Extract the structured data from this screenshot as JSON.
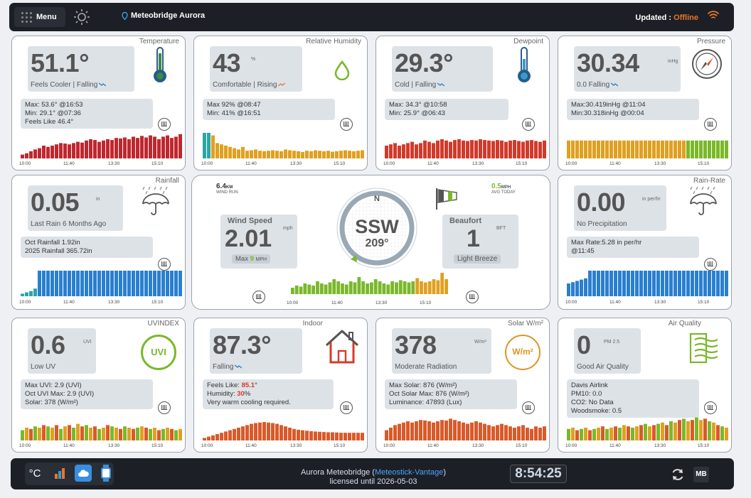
{
  "header": {
    "menu_label": "Menu",
    "station_name": "Meteobridge Aurora",
    "updated_label": "Updated : ",
    "updated_status": "Offline"
  },
  "axis_times": [
    "10:00",
    "11:40",
    "13:30",
    "15:10"
  ],
  "temperature": {
    "title": "Temperature",
    "value": "51.1°",
    "subtitle": "Feels Cooler | Falling",
    "stats": [
      "Max: 53.6° @16:53",
      "Min: 29.1° @07:36",
      "Feels Like 46.4°"
    ],
    "color": "#c0272d"
  },
  "humidity": {
    "title": "Relative Humidity",
    "value": "43",
    "unit": "%",
    "subtitle": "Comfortable | Rising",
    "stats": [
      "Max 92% @08:47",
      "Min: 41% @16:51"
    ],
    "color": "#e0a020"
  },
  "dewpoint": {
    "title": "Dewpoint",
    "value": "29.3°",
    "subtitle": "Cold | Falling",
    "stats": [
      "Max: 34.3° @10:58",
      "Min: 25.9° @06:43"
    ],
    "color": "#d23a2a"
  },
  "pressure": {
    "title": "Pressure",
    "value": "30.34",
    "unit": "inHg",
    "subtitle": "0.0 Falling",
    "stats": [
      "Max:30.419inHg @11:04",
      "Min:30.318inHg @00:04"
    ],
    "color": "#e0a020"
  },
  "rainfall": {
    "title": "Rainfall",
    "value": "0.05",
    "unit": "in",
    "subtitle": "Last Rain 6 Months Ago",
    "stats": [
      "Oct Rainfall 1.92in",
      "2025 Rainfall 365.72in"
    ],
    "color": "#2a7fcf"
  },
  "wind": {
    "wind_run_value": "6.4",
    "wind_run_unit": "KM",
    "wind_run_label": "WIND RUN",
    "avg_value": "0.5",
    "avg_unit": "MPH",
    "avg_label": "AVG TODAY",
    "speed_title": "Wind Speed",
    "speed_value": "2.01",
    "speed_unit": "mph",
    "max_label": "Max",
    "max_value": "9",
    "max_unit": "MPH",
    "compass_north": "N",
    "direction": "SSW",
    "degrees": "209°",
    "beaufort_title": "Beaufort",
    "beaufort_value": "1",
    "beaufort_unit": "BFT",
    "beaufort_desc": "Light Breeze"
  },
  "rainrate": {
    "title": "Rain-Rate",
    "value": "0.00",
    "unit": "in per/hr",
    "subtitle": "No Precipitation",
    "stats": [
      "Max Rate:5.28 in per/hr",
      "@11:45"
    ],
    "color": "#2a7fcf"
  },
  "uvindex": {
    "title": "UVINDEX",
    "value": "0.6",
    "unit": "UVI",
    "badge": "UVI",
    "subtitle": "Low UV",
    "stats": [
      "Max UVI: 2.9 (UVI)",
      "Oct UVI Max: 2.9 (UVI)",
      "Solar: 378 (W/m²)"
    ]
  },
  "indoor": {
    "title": "Indoor",
    "value": "87.3°",
    "subtitle": "Falling",
    "stats_feels_label": "Feels Like: ",
    "stats_feels_value": "85.1",
    "stats_feels_unit": "°",
    "stats_hum_label": "Humidity: ",
    "stats_hum_value": "30",
    "stats_hum_unit": "%",
    "stats_note": "Very warm cooling required."
  },
  "solar": {
    "title": "Solar W/m²",
    "value": "378",
    "unit": "W/m²",
    "badge": "W/m²",
    "subtitle": "Moderate Radiation",
    "stats": [
      "Max Solar: 876 (W/m²)",
      "Oct Solar Max: 876 (W/m²)",
      "Luminance: 47893 (Lux)"
    ]
  },
  "airquality": {
    "title": "Air Quality",
    "value": "0",
    "unit": "PM 2.5",
    "subtitle": "Good Air Quality",
    "stats": [
      "Davis Airlink",
      "PM10: 0.0",
      "CO2: No Data",
      "Woodsmoke: 0.5"
    ]
  },
  "footer": {
    "celsius_label": "°C",
    "license_prefix": "Aurora Meteobridge (",
    "license_link": "Meteostick-Vantage",
    "license_suffix": ")",
    "license_line2": "licensed until 2026-05-03",
    "clock": "8:54:25",
    "mb_label": "MB"
  },
  "series": {
    "temperature": [
      0.15,
      0.2,
      0.28,
      0.35,
      0.4,
      0.5,
      0.45,
      0.5,
      0.55,
      0.6,
      0.58,
      0.55,
      0.6,
      0.65,
      0.62,
      0.7,
      0.75,
      0.72,
      0.65,
      0.7,
      0.75,
      0.72,
      0.8,
      0.78,
      0.82,
      0.75,
      0.85,
      0.8,
      0.88,
      0.82,
      0.9,
      0.85,
      0.75,
      0.85,
      0.9,
      0.8,
      0.85,
      0.95
    ],
    "humidity": [
      1,
      1,
      0.9,
      0.6,
      0.55,
      0.5,
      0.45,
      0.4,
      0.35,
      0.45,
      0.3,
      0.32,
      0.35,
      0.3,
      0.28,
      0.3,
      0.32,
      0.3,
      0.28,
      0.35,
      0.32,
      0.3,
      0.28,
      0.25,
      0.3,
      0.28,
      0.32,
      0.3,
      0.28,
      0.3,
      0.26,
      0.28,
      0.3,
      0.32,
      0.3,
      0.28,
      0.3,
      0.32
    ],
    "dewpoint": [
      0.5,
      0.55,
      0.6,
      0.5,
      0.55,
      0.6,
      0.65,
      0.55,
      0.6,
      0.7,
      0.65,
      0.6,
      0.7,
      0.75,
      0.7,
      0.65,
      0.72,
      0.75,
      0.7,
      0.68,
      0.72,
      0.7,
      0.75,
      0.72,
      0.7,
      0.68,
      0.72,
      0.7,
      0.65,
      0.7,
      0.72,
      0.68,
      0.65,
      0.7,
      0.72,
      0.68,
      0.65,
      0.7
    ],
    "pressure": [
      0.7,
      0.7,
      0.7,
      0.7,
      0.7,
      0.7,
      0.7,
      0.7,
      0.7,
      0.7,
      0.7,
      0.7,
      0.7,
      0.7,
      0.7,
      0.7,
      0.7,
      0.7,
      0.7,
      0.7,
      0.7,
      0.7,
      0.7,
      0.7,
      0.7,
      0.7,
      0.7,
      0.7,
      0.7,
      0.7,
      0.7,
      0.7,
      0.7,
      0.7,
      0.7,
      0.7,
      0.7,
      0.7
    ],
    "rainfall": [
      0.1,
      0.15,
      0.2,
      0.3,
      1,
      1,
      1,
      1,
      1,
      1,
      1,
      1,
      1,
      1,
      1,
      1,
      1,
      1,
      1,
      1,
      1,
      1,
      1,
      1,
      1,
      1,
      1,
      1,
      1,
      1,
      1,
      1,
      1,
      1,
      1,
      1,
      1,
      1
    ],
    "wind": [
      0.3,
      0.4,
      0.35,
      0.5,
      0.45,
      0.4,
      0.6,
      0.5,
      0.45,
      0.55,
      0.7,
      0.6,
      0.5,
      0.45,
      0.6,
      0.55,
      0.8,
      0.6,
      0.5,
      0.55,
      0.7,
      0.6,
      0.5,
      0.45,
      0.6,
      0.55,
      0.65,
      0.6,
      0.55,
      0.6,
      0.75,
      0.6,
      0.55,
      0.6,
      0.7,
      0.65,
      1,
      0.7
    ],
    "rainrate": [
      0.5,
      0.55,
      0.6,
      0.65,
      0.7,
      1,
      1,
      1,
      1,
      1,
      1,
      1,
      1,
      1,
      1,
      1,
      1,
      1,
      1,
      1,
      1,
      1,
      1,
      1,
      1,
      1,
      1,
      1,
      1,
      1,
      1,
      1,
      1,
      1,
      1,
      1,
      1,
      1
    ],
    "uvindex": [
      0.4,
      0.5,
      0.45,
      0.55,
      0.5,
      0.6,
      0.55,
      0.5,
      0.6,
      0.45,
      0.55,
      0.6,
      0.5,
      0.65,
      0.55,
      0.6,
      0.5,
      0.55,
      0.45,
      0.5,
      0.6,
      0.55,
      0.5,
      0.45,
      0.55,
      0.5,
      0.45,
      0.5,
      0.55,
      0.5,
      0.45,
      0.5,
      0.4,
      0.45,
      0.5,
      0.45,
      0.4,
      0.45
    ],
    "indoor": [
      0.1,
      0.15,
      0.2,
      0.25,
      0.3,
      0.35,
      0.4,
      0.45,
      0.5,
      0.55,
      0.6,
      0.65,
      0.68,
      0.7,
      0.72,
      0.7,
      0.68,
      0.65,
      0.6,
      0.55,
      0.5,
      0.45,
      0.42,
      0.4,
      0.38,
      0.36,
      0.35,
      0.34,
      0.33,
      0.32,
      0.32,
      0.31,
      0.3,
      0.3,
      0.3,
      0.3,
      0.3,
      0.3
    ],
    "solar": [
      0.4,
      0.5,
      0.6,
      0.65,
      0.7,
      0.75,
      0.7,
      0.75,
      0.8,
      0.78,
      0.75,
      0.7,
      0.75,
      0.8,
      0.78,
      0.85,
      0.8,
      0.75,
      0.7,
      0.65,
      0.7,
      0.75,
      0.7,
      0.65,
      0.6,
      0.55,
      0.6,
      0.65,
      0.6,
      0.55,
      0.5,
      0.55,
      0.6,
      0.5,
      0.45,
      0.55,
      0.5,
      0.55
    ],
    "airquality": [
      0.45,
      0.5,
      0.4,
      0.45,
      0.5,
      0.4,
      0.45,
      0.5,
      0.55,
      0.45,
      0.5,
      0.55,
      0.5,
      0.6,
      0.55,
      0.5,
      0.55,
      0.6,
      0.65,
      0.55,
      0.6,
      0.65,
      0.7,
      0.6,
      0.75,
      0.7,
      0.8,
      0.85,
      0.75,
      0.8,
      0.9,
      0.8,
      0.85,
      0.75,
      0.7,
      0.6,
      0.55,
      0.5
    ]
  }
}
